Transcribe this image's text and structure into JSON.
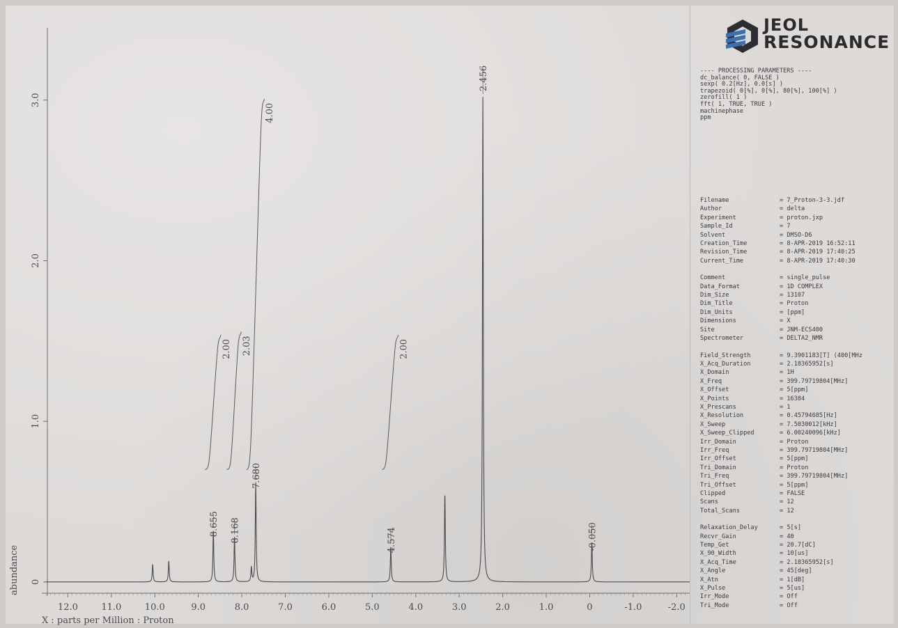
{
  "chart_data": {
    "type": "line",
    "xlabel": "X : parts per Million : Proton",
    "ylabel": "abundance",
    "xlim": [
      12.6,
      -2.3
    ],
    "ylim": [
      -0.07,
      3.45
    ],
    "x_ticks": [
      "12.0",
      "11.0",
      "10.0",
      "9.0",
      "8.0",
      "7.0",
      "6.0",
      "5.0",
      "4.0",
      "3.0",
      "2.0",
      "1.0",
      "0",
      "-1.0",
      "-2.0"
    ],
    "y_ticks": [
      "0",
      "1.0",
      "2.0",
      "3.0"
    ],
    "peaks": [
      {
        "ppm": 10.05,
        "height": 0.11
      },
      {
        "ppm": 9.68,
        "height": 0.13
      },
      {
        "ppm": 8.655,
        "height": 0.32
      },
      {
        "ppm": 8.168,
        "height": 0.28
      },
      {
        "ppm": 7.78,
        "height": 0.09
      },
      {
        "ppm": 7.68,
        "height": 0.62
      },
      {
        "ppm": 4.574,
        "height": 0.22
      },
      {
        "ppm": 3.33,
        "height": 0.55
      },
      {
        "ppm": 2.456,
        "height": 3.02
      },
      {
        "ppm": -0.05,
        "height": 0.25
      }
    ],
    "peak_labels": [
      {
        "ppm": 8.655,
        "text": "8.655"
      },
      {
        "ppm": 8.168,
        "text": "8.168"
      },
      {
        "ppm": 7.68,
        "text": "7.680"
      },
      {
        "ppm": 4.574,
        "text": "4.574"
      },
      {
        "ppm": 2.456,
        "text": "2.456"
      },
      {
        "ppm": -0.05,
        "text": "-0.050"
      }
    ],
    "integrals": [
      {
        "from": 8.75,
        "to": 8.55,
        "value": "2.00",
        "top": 1.53
      },
      {
        "from": 8.25,
        "to": 8.08,
        "value": "2.03",
        "top": 1.55
      },
      {
        "from": 7.8,
        "to": 7.55,
        "value": "4.00",
        "top": 3.0
      },
      {
        "from": 4.68,
        "to": 4.47,
        "value": "2.00",
        "top": 1.53
      }
    ]
  },
  "brand": {
    "line1": "JEOL",
    "line2": "RESONANCE",
    "color": "#3d6fb3"
  },
  "processing": {
    "lines": [
      "---- PROCESSING PARAMETERS ----",
      "dc_balance( 0, FALSE )",
      "sexp( 0.2[Hz], 0.0[s] )",
      "trapezoid( 0[%], 0[%], 80[%], 100[%] )",
      "zerofill( 1 )",
      "fft( 1, TRUE, TRUE )",
      "machinephase",
      "ppm"
    ]
  },
  "params": {
    "groups": [
      [
        [
          "Filename",
          "= 7_Proton-3-3.jdf"
        ],
        [
          "Author",
          "= delta"
        ],
        [
          "Experiment",
          "= proton.jxp"
        ],
        [
          "Sample_Id",
          "= 7"
        ],
        [
          "Solvent",
          "= DMSO-D6"
        ],
        [
          "Creation_Time",
          "= 8-APR-2019 16:52:11"
        ],
        [
          "Revision_Time",
          "= 8-APR-2019 17:40:25"
        ],
        [
          "Current_Time",
          "= 8-APR-2019 17:40:30"
        ]
      ],
      [
        [
          "Comment",
          "= single_pulse"
        ],
        [
          "Data_Format",
          "= 1D COMPLEX"
        ],
        [
          "Dim_Size",
          "= 13107"
        ],
        [
          "Dim_Title",
          "= Proton"
        ],
        [
          "Dim_Units",
          "= [ppm]"
        ],
        [
          "Dimensions",
          "= X"
        ],
        [
          "Site",
          "= JNM-ECS400"
        ],
        [
          "Spectrometer",
          "= DELTA2_NMR"
        ]
      ],
      [
        [
          "Field_Strength",
          "= 9.3901183[T] (400[MHz"
        ],
        [
          "X_Acq_Duration",
          "= 2.18365952[s]"
        ],
        [
          "X_Domain",
          "= 1H"
        ],
        [
          "X_Freq",
          "= 399.79719804[MHz]"
        ],
        [
          "X_Offset",
          "= 5[ppm]"
        ],
        [
          "X_Points",
          "= 16384"
        ],
        [
          "X_Prescans",
          "= 1"
        ],
        [
          "X_Resolution",
          "= 0.45794685[Hz]"
        ],
        [
          "X_Sweep",
          "= 7.5030012[kHz]"
        ],
        [
          "X_Sweep_Clipped",
          "= 6.00240096[kHz]"
        ],
        [
          "Irr_Domain",
          "= Proton"
        ],
        [
          "Irr_Freq",
          "= 399.79719804[MHz]"
        ],
        [
          "Irr_Offset",
          "= 5[ppm]"
        ],
        [
          "Tri_Domain",
          "= Proton"
        ],
        [
          "Tri_Freq",
          "= 399.79719804[MHz]"
        ],
        [
          "Tri_Offset",
          "= 5[ppm]"
        ],
        [
          "Clipped",
          "= FALSE"
        ],
        [
          "Scans",
          "= 12"
        ],
        [
          "Total_Scans",
          "= 12"
        ]
      ],
      [
        [
          "Relaxation_Delay",
          "= 5[s]"
        ],
        [
          "Recvr_Gain",
          "= 40"
        ],
        [
          "Temp_Get",
          "= 20.7[dC]"
        ],
        [
          "X_90_Width",
          "= 10[us]"
        ],
        [
          "X_Acq_Time",
          "= 2.18365952[s]"
        ],
        [
          "X_Angle",
          "= 45[deg]"
        ],
        [
          "X_Atn",
          "= 1[dB]"
        ],
        [
          "X_Pulse",
          "= 5[us]"
        ],
        [
          "Irr_Mode",
          "= Off"
        ],
        [
          "Tri_Mode",
          "= Off"
        ]
      ]
    ]
  }
}
